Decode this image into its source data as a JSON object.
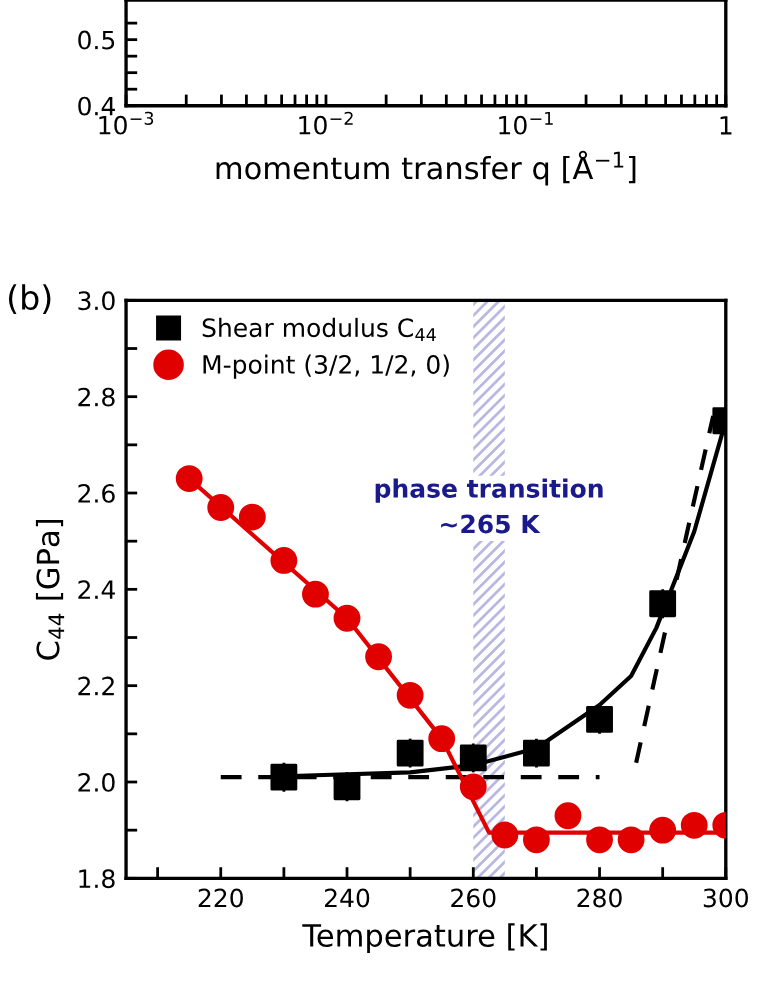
{
  "chart_data": [
    {
      "type": "line",
      "xlabel": "momentum transfer q [Å$^{−1}$]",
      "log": "x",
      "xlim": [
        0.001,
        1
      ],
      "ylim": [
        0.4,
        0.56
      ],
      "xticks": [
        {
          "value": 0.001,
          "label": "10$^{−3}$"
        },
        {
          "value": 0.01,
          "label": "10$^{−2}$"
        },
        {
          "value": 0.1,
          "label": "10$^{−1}$"
        },
        1,
        {
          "value": 0.002,
          "label": null
        },
        {
          "value": 0.003,
          "label": null
        },
        {
          "value": 0.004,
          "label": null
        },
        {
          "value": 0.005,
          "label": null
        },
        {
          "value": 0.006,
          "label": null
        },
        {
          "value": 0.007,
          "label": null
        },
        {
          "value": 0.008,
          "label": null
        },
        {
          "value": 0.009,
          "label": null
        },
        {
          "value": 0.02,
          "label": null
        },
        {
          "value": 0.03,
          "label": null
        },
        {
          "value": 0.04,
          "label": null
        },
        {
          "value": 0.05,
          "label": null
        },
        {
          "value": 0.06,
          "label": null
        },
        {
          "value": 0.07,
          "label": null
        },
        {
          "value": 0.08,
          "label": null
        },
        {
          "value": 0.09,
          "label": null
        },
        {
          "value": 0.2,
          "label": null
        },
        {
          "value": 0.3,
          "label": null
        },
        {
          "value": 0.4,
          "label": null
        },
        {
          "value": 0.5,
          "label": null
        },
        {
          "value": 0.6,
          "label": null
        },
        {
          "value": 0.7,
          "label": null
        },
        {
          "value": 0.8,
          "label": null
        },
        {
          "value": 0.9,
          "label": null
        }
      ],
      "yticks": [
        0.4,
        0.5,
        {
          "value": 0.425,
          "label": null
        },
        {
          "value": 0.45,
          "label": null
        },
        {
          "value": 0.475,
          "label": null
        },
        {
          "value": 0.525,
          "label": null
        }
      ]
    },
    {
      "type": "scatter",
      "xlabel": "Temperature [K]",
      "ylabel": "C$_{44}$ [GPa]",
      "annotations": [
        "(b)"
      ],
      "legend": "top left",
      "xlim": [
        205,
        300
      ],
      "ylim": [
        1.8,
        3.0
      ],
      "xticks": [
        220,
        240,
        260,
        280,
        300,
        {
          "value": 210,
          "label": null
        },
        {
          "value": 230,
          "label": null
        },
        {
          "value": 250,
          "label": null
        },
        {
          "value": 270,
          "label": null
        },
        {
          "value": 290,
          "label": null
        }
      ],
      "yticks": [
        1.8,
        {
          "value": 2.0,
          "label": "2.0"
        },
        2.2,
        2.4,
        2.6,
        2.8,
        {
          "value": 3.0,
          "label": "3.0"
        },
        {
          "value": 1.9,
          "label": null
        },
        {
          "value": 2.1,
          "label": null
        },
        {
          "value": 2.3,
          "label": null
        },
        {
          "value": 2.5,
          "label": null
        },
        {
          "value": 2.7,
          "label": null
        },
        {
          "value": 2.9,
          "label": null
        }
      ],
      "bands": [
        {
          "axis": "x",
          "from": 260,
          "to": 265,
          "label": "phase transition\n~265 K",
          "color": "#3b3bb0"
        }
      ],
      "series": [
        {
          "type": "line",
          "color": "#000000",
          "line_style": "dashed",
          "marker": "none",
          "x": [
            220,
            280
          ],
          "values": [
            2.01,
            2.01
          ]
        },
        {
          "type": "line",
          "color": "#000000",
          "line_style": "dashed",
          "marker": "none",
          "x": [
            285.8,
            294.4,
            298
          ],
          "values": [
            2.04,
            2.55,
            2.76
          ]
        },
        {
          "type": "line",
          "color": "#000000",
          "line_style": "solid",
          "marker": "none",
          "x": [
            230,
            250,
            260,
            270,
            280,
            285,
            289,
            295,
            300
          ],
          "values": [
            2.012,
            2.02,
            2.035,
            2.07,
            2.16,
            2.22,
            2.32,
            2.52,
            2.75
          ]
        },
        {
          "type": "line",
          "color": "#e00000",
          "line_style": "solid",
          "marker": "none",
          "x": [
            215,
            240,
            255,
            262.5,
            300
          ],
          "values": [
            2.63,
            2.34,
            2.09,
            1.895,
            1.895
          ]
        },
        {
          "name": "Shear modulus C$_{44}$",
          "color": "#000000",
          "marker": "square",
          "x": [
            230,
            240,
            250,
            260,
            270,
            280,
            290,
            300
          ],
          "values": [
            2.01,
            1.99,
            2.06,
            2.05,
            2.06,
            2.13,
            2.37,
            2.75
          ],
          "errors": [
            0.03,
            0.03,
            0.03,
            0.03,
            0.03,
            0.03,
            0.03,
            0.03
          ]
        },
        {
          "name": "M-point (3/2, 1/2, 0)",
          "color": "#e00000",
          "marker": "circle",
          "x": [
            215,
            220,
            225,
            230,
            235,
            240,
            245,
            250,
            255,
            260,
            265,
            270,
            275,
            280,
            285,
            290,
            295,
            300
          ],
          "values": [
            2.63,
            2.57,
            2.55,
            2.46,
            2.39,
            2.34,
            2.26,
            2.18,
            2.09,
            1.99,
            1.89,
            1.88,
            1.93,
            1.88,
            1.88,
            1.9,
            1.91,
            1.91
          ]
        }
      ]
    }
  ]
}
